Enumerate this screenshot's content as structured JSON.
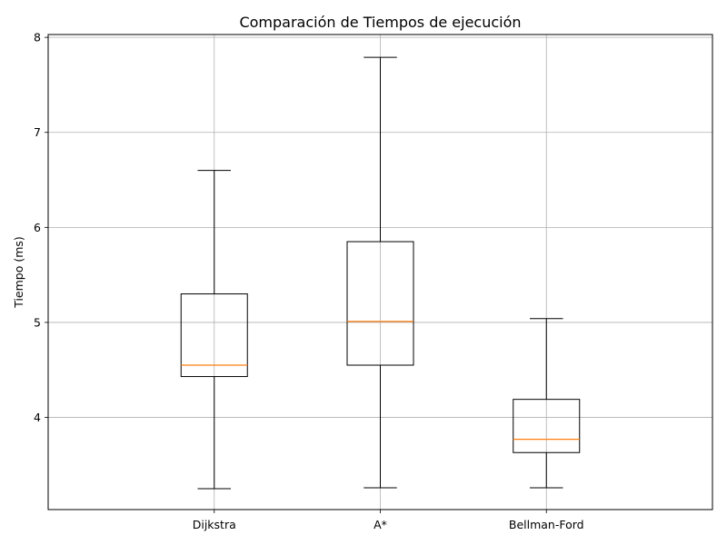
{
  "chart_data": {
    "type": "boxplot",
    "title": "Comparación de Tiempos de ejecución",
    "xlabel": "",
    "ylabel": "Tiempo (ms)",
    "categories": [
      "Dijkstra",
      "A*",
      "Bellman-Ford"
    ],
    "boxes": [
      {
        "category": "Dijkstra",
        "whisker_low": 3.25,
        "q1": 4.43,
        "median": 4.55,
        "q3": 5.3,
        "whisker_high": 6.6
      },
      {
        "category": "A*",
        "whisker_low": 3.26,
        "q1": 4.55,
        "median": 5.01,
        "q3": 5.85,
        "whisker_high": 7.79
      },
      {
        "category": "Bellman-Ford",
        "whisker_low": 3.26,
        "q1": 3.63,
        "median": 3.77,
        "q3": 4.19,
        "whisker_high": 5.04
      }
    ],
    "yticks": [
      "4",
      "5",
      "6",
      "7",
      "8"
    ],
    "ylim": [
      3.03,
      8.03
    ],
    "grid": true,
    "colors": {
      "box": "#000000",
      "median": "#ff7f0e",
      "grid": "#b0b0b0"
    }
  }
}
